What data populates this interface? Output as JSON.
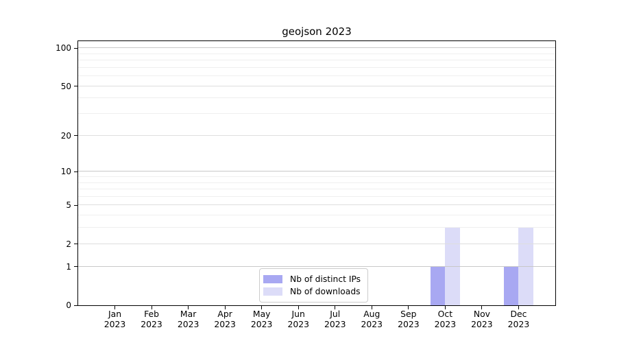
{
  "title": "geojson 2023",
  "colors": {
    "distinct_ips": "#a8a8f2",
    "downloads": "#dcdcf8",
    "grid_major": "#c8c8c8",
    "grid_mid": "#dedede",
    "grid_minor": "#efefef",
    "spine": "#000000",
    "legend_border": "#cccccc"
  },
  "legend": {
    "entries": [
      {
        "label": "Nb of distinct IPs",
        "series_key": "distinct_ips"
      },
      {
        "label": "Nb of downloads",
        "series_key": "downloads"
      }
    ]
  },
  "y_axis": {
    "tick_values": [
      0,
      1,
      2,
      5,
      10,
      20,
      50,
      100
    ],
    "tick_labels": [
      "0",
      "1",
      "2",
      "5",
      "10",
      "20",
      "50",
      "100"
    ],
    "major_values": [
      1,
      10,
      100
    ],
    "minor_values": [
      3,
      4,
      6,
      7,
      8,
      9,
      30,
      40,
      60,
      70,
      80,
      90
    ],
    "scale": "log10(1+v)"
  },
  "x_axis": {
    "categories": [
      {
        "month": "Jan",
        "year": "2023"
      },
      {
        "month": "Feb",
        "year": "2023"
      },
      {
        "month": "Mar",
        "year": "2023"
      },
      {
        "month": "Apr",
        "year": "2023"
      },
      {
        "month": "May",
        "year": "2023"
      },
      {
        "month": "Jun",
        "year": "2023"
      },
      {
        "month": "Jul",
        "year": "2023"
      },
      {
        "month": "Aug",
        "year": "2023"
      },
      {
        "month": "Sep",
        "year": "2023"
      },
      {
        "month": "Oct",
        "year": "2023"
      },
      {
        "month": "Nov",
        "year": "2023"
      },
      {
        "month": "Dec",
        "year": "2023"
      }
    ]
  },
  "chart_data": {
    "type": "bar",
    "title": "geojson 2023",
    "categories": [
      "Jan 2023",
      "Feb 2023",
      "Mar 2023",
      "Apr 2023",
      "May 2023",
      "Jun 2023",
      "Jul 2023",
      "Aug 2023",
      "Sep 2023",
      "Oct 2023",
      "Nov 2023",
      "Dec 2023"
    ],
    "series": [
      {
        "name": "Nb of distinct IPs",
        "key": "distinct_ips",
        "values": [
          0,
          0,
          0,
          0,
          0,
          0,
          0,
          0,
          0,
          1,
          0,
          1
        ]
      },
      {
        "name": "Nb of downloads",
        "key": "downloads",
        "values": [
          0,
          0,
          0,
          0,
          0,
          0,
          0,
          0,
          0,
          3,
          0,
          3
        ]
      }
    ],
    "y_scale": "log1p",
    "y_ticks": [
      0,
      1,
      2,
      5,
      10,
      20,
      50,
      100
    ],
    "ylim": [
      0,
      113
    ],
    "grid": "both",
    "legend_position": "lower center"
  }
}
